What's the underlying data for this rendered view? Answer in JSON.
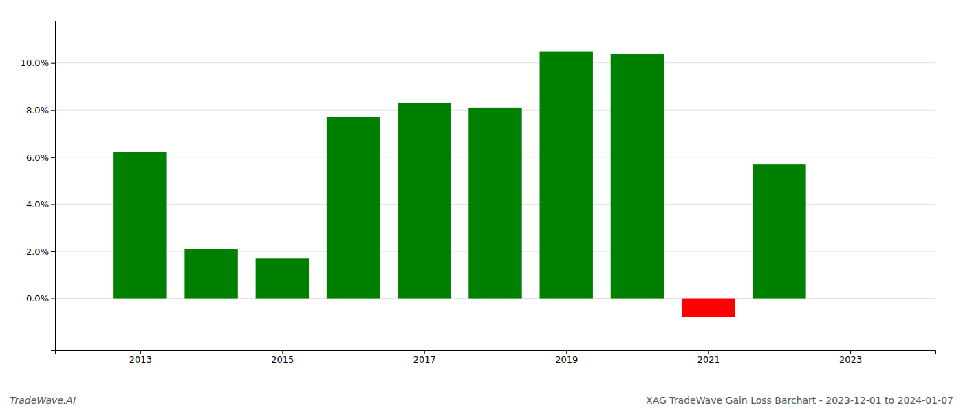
{
  "chart_data": {
    "type": "bar",
    "x": [
      2013,
      2014,
      2015,
      2016,
      2017,
      2018,
      2019,
      2020,
      2021,
      2022
    ],
    "values": [
      0.062,
      0.021,
      0.017,
      0.077,
      0.083,
      0.081,
      0.105,
      0.104,
      -0.008,
      0.057
    ],
    "colors": [
      "#008000",
      "#008000",
      "#008000",
      "#008000",
      "#008000",
      "#008000",
      "#008000",
      "#008000",
      "#ff0000",
      "#008000"
    ],
    "xlim": [
      2011.8,
      2024.2
    ],
    "xticks": [
      2013,
      2015,
      2017,
      2019,
      2021,
      2023
    ],
    "ylim": [
      -0.022,
      0.118
    ],
    "yticks": [
      {
        "value": 0.0,
        "label": "0.0%"
      },
      {
        "value": 0.02,
        "label": "2.0%"
      },
      {
        "value": 0.04,
        "label": "4.0%"
      },
      {
        "value": 0.06,
        "label": "6.0%"
      },
      {
        "value": 0.08,
        "label": "8.0%"
      },
      {
        "value": 0.1,
        "label": "10.0%"
      }
    ],
    "grid": true,
    "annotations": [
      "TradeWave.AI",
      "XAG TradeWave Gain Loss Barchart - 2023-12-01 to 2024-01-07"
    ]
  }
}
